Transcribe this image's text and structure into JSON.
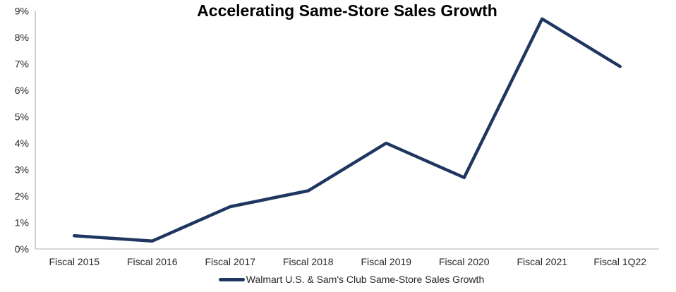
{
  "chart_data": {
    "type": "line",
    "title": "Accelerating Same-Store Sales Growth",
    "categories": [
      "Fiscal 2015",
      "Fiscal 2016",
      "Fiscal 2017",
      "Fiscal 2018",
      "Fiscal 2019",
      "Fiscal 2020",
      "Fiscal 2021",
      "Fiscal 1Q22"
    ],
    "series": [
      {
        "name": "Walmart U.S. & Sam's Club Same-Store Sales Growth",
        "values": [
          0.5,
          0.3,
          1.6,
          2.2,
          4.0,
          2.7,
          8.7,
          6.9
        ]
      }
    ],
    "xlabel": "",
    "ylabel": "",
    "ylim": [
      0,
      9
    ],
    "ytick_step": 1,
    "ytick_suffix": "%",
    "grid": false,
    "legend_position": "bottom"
  },
  "colors": {
    "line": "#1F3760",
    "axis": "#BFBFBF",
    "tick_text": "#262626",
    "title_text": "#000000"
  }
}
